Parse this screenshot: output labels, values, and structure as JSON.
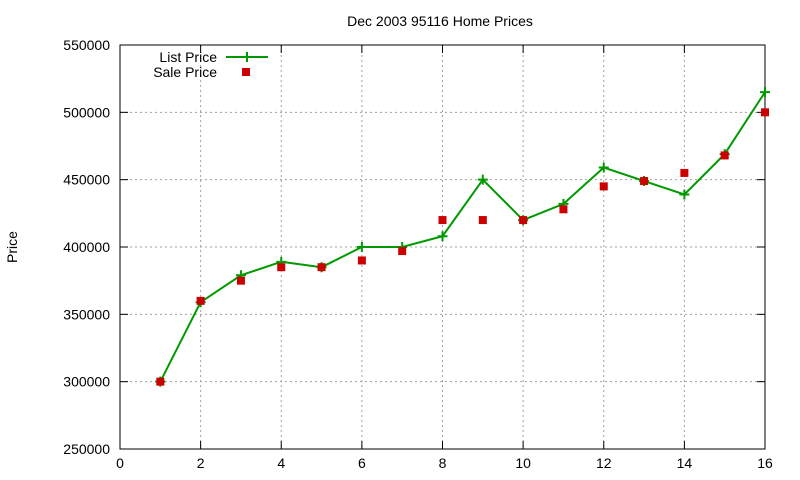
{
  "chart_data": {
    "type": "line",
    "title": "Dec 2003 95116 Home Prices",
    "xlabel": "",
    "ylabel": "Price",
    "xlim": [
      0,
      16
    ],
    "ylim": [
      250000,
      550000
    ],
    "x_ticks": [
      0,
      2,
      4,
      6,
      8,
      10,
      12,
      14,
      16
    ],
    "y_ticks": [
      250000,
      300000,
      350000,
      400000,
      450000,
      500000,
      550000
    ],
    "x_tick_labels": [
      "0",
      "2",
      "4",
      "6",
      "8",
      "10",
      "12",
      "14",
      "16"
    ],
    "y_tick_labels": [
      "250000",
      "300000",
      "350000",
      "400000",
      "450000",
      "500000",
      "550000"
    ],
    "grid": true,
    "legend_position": "top-left",
    "series": [
      {
        "name": "List Price",
        "style": "line-with-plus-markers",
        "color": "#009900",
        "x": [
          1,
          2,
          3,
          4,
          5,
          6,
          7,
          8,
          9,
          10,
          11,
          12,
          13,
          14,
          15,
          16
        ],
        "values": [
          300000,
          359000,
          379000,
          389000,
          385000,
          400000,
          400000,
          408000,
          450000,
          420000,
          432000,
          459000,
          449000,
          439000,
          469000,
          515000
        ]
      },
      {
        "name": "Sale Price",
        "style": "square-markers",
        "color": "#cc0000",
        "x": [
          1,
          2,
          3,
          4,
          5,
          6,
          7,
          8,
          9,
          10,
          11,
          12,
          13,
          14,
          15,
          16
        ],
        "values": [
          300000,
          360000,
          375000,
          385000,
          385000,
          390000,
          397000,
          420000,
          420000,
          420000,
          428000,
          445000,
          449000,
          455000,
          468000,
          500000
        ]
      }
    ]
  }
}
